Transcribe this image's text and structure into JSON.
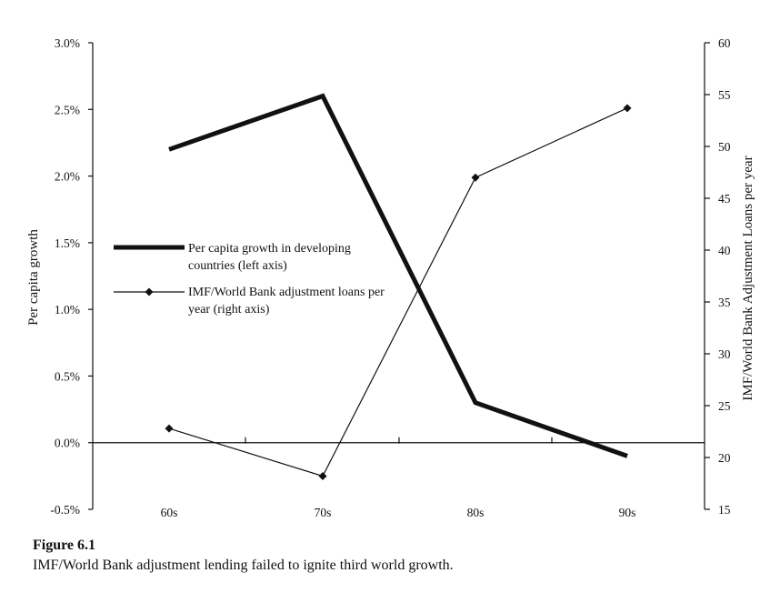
{
  "chart_data": {
    "type": "line",
    "categories": [
      "60s",
      "70s",
      "80s",
      "90s"
    ],
    "series": [
      {
        "name": "Per capita growth in developing countries (left axis)",
        "axis": "left",
        "values": [
          2.2,
          2.6,
          0.3,
          -0.1
        ],
        "style": "thick"
      },
      {
        "name": "IMF/World Bank adjustment loans per year (right axis)",
        "axis": "right",
        "values": [
          22.8,
          18.2,
          47.0,
          53.7
        ],
        "style": "thin-diamond"
      }
    ],
    "ylabel_left": "Per capita growth",
    "ylabel_right": "IMF/World Bank Adjustment Loans per year",
    "ylim_left": [
      -0.5,
      3.0
    ],
    "ylim_right": [
      15,
      60
    ],
    "yticks_left": [
      "-0.5%",
      "0.0%",
      "0.5%",
      "1.0%",
      "1.5%",
      "2.0%",
      "2.5%",
      "3.0%"
    ],
    "yticks_right": [
      "15",
      "20",
      "25",
      "30",
      "35",
      "40",
      "45",
      "50",
      "55",
      "60"
    ],
    "legend": {
      "placement": "center-left",
      "entries": [
        [
          "Per capita growth in developing",
          "countries (left axis)"
        ],
        [
          "IMF/World Bank adjustment loans per",
          "year (right axis)"
        ]
      ]
    },
    "grid": false
  },
  "caption": {
    "number": "Figure 6.1",
    "text": "IMF/World Bank adjustment lending failed to ignite third world growth."
  }
}
